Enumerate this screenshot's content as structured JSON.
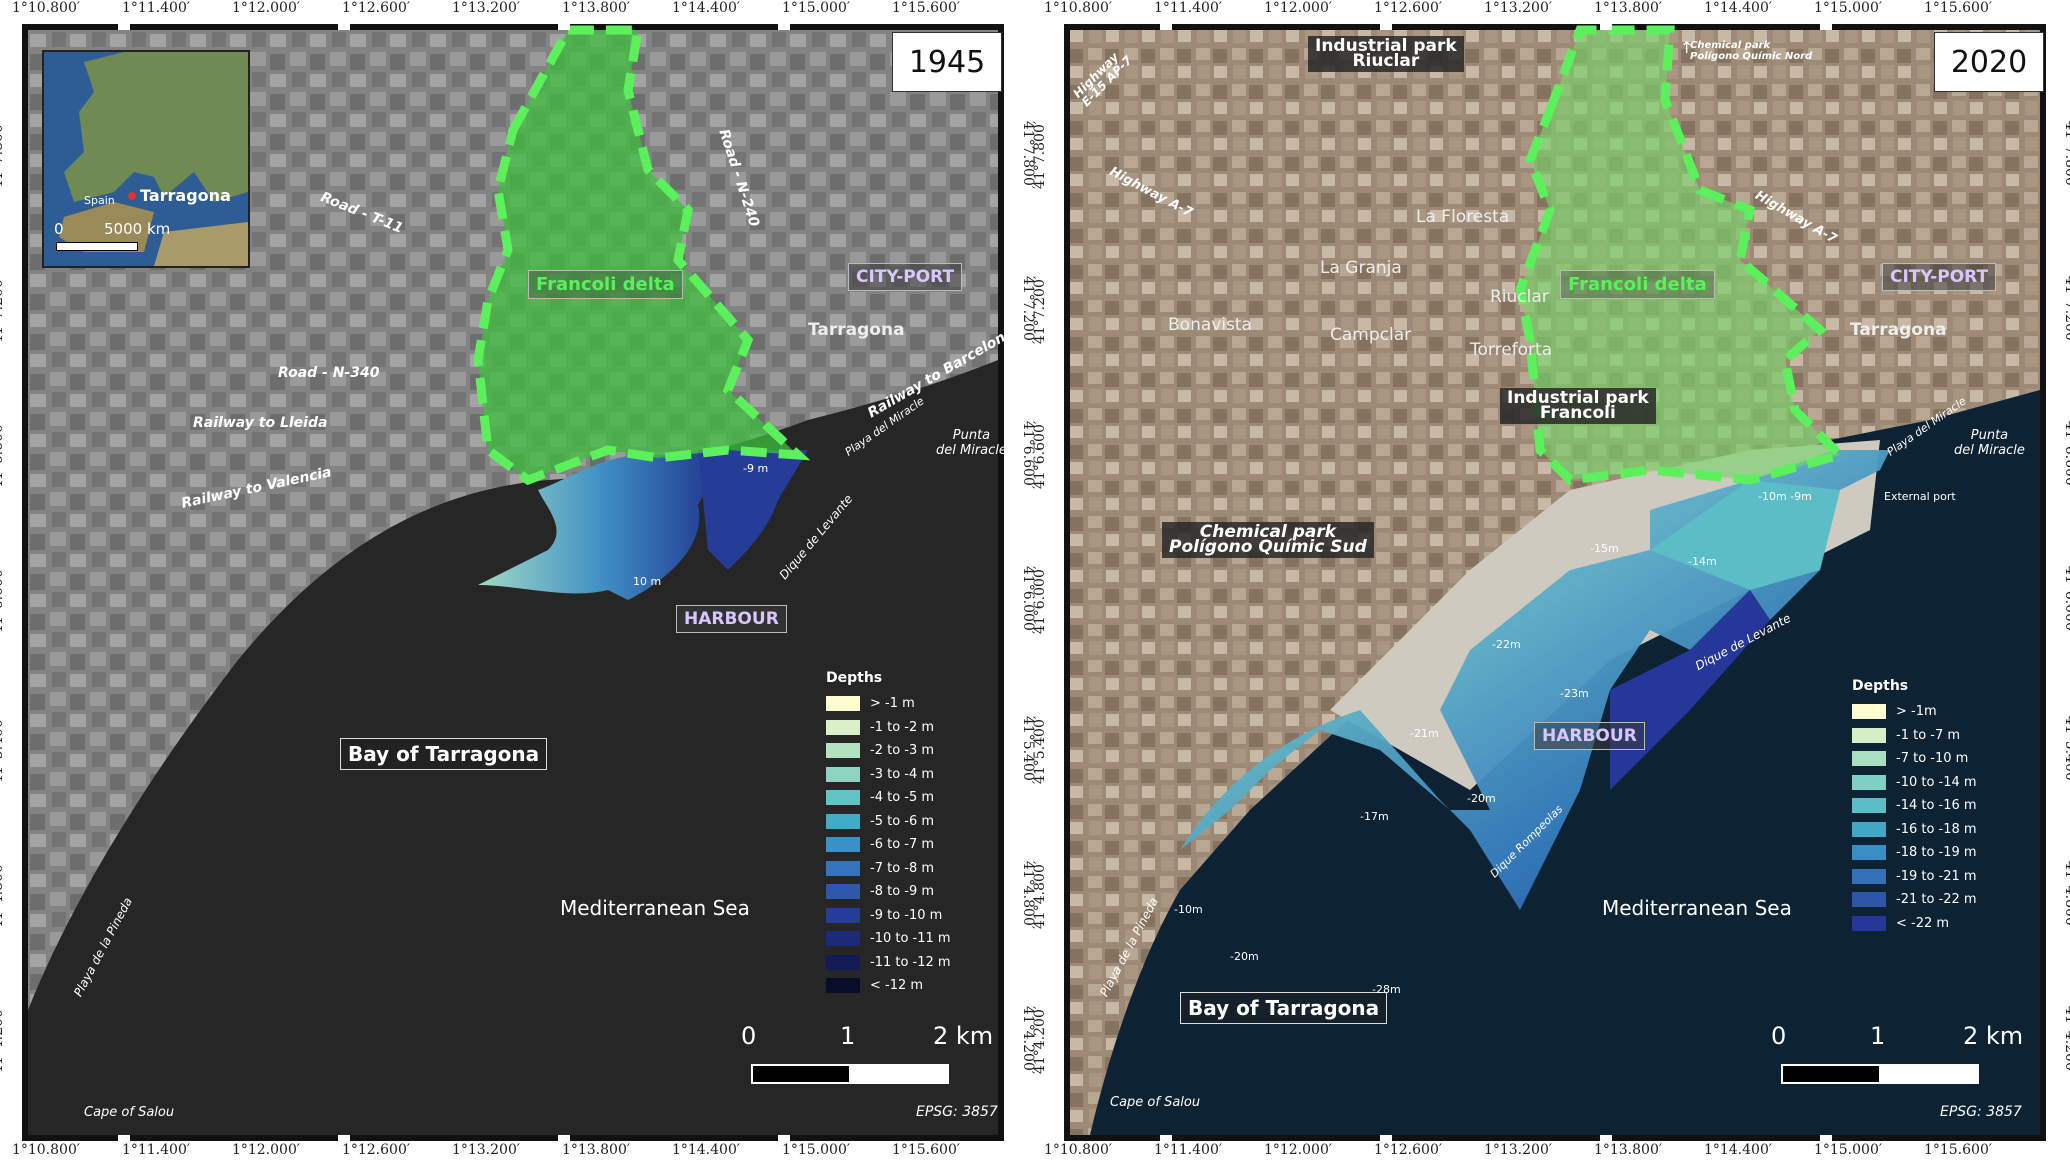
{
  "coords": {
    "lon_ticks": [
      "1°10.800′",
      "1°11.400′",
      "1°12.000′",
      "1°12.600′",
      "1°13.200′",
      "1°13.800′",
      "1°14.400′",
      "1°15.000′",
      "1°15.600′"
    ],
    "lat_ticks": [
      "41°7.800′",
      "41°7.200′",
      "41°6.600′",
      "41°6.000′",
      "41°5.400′",
      "41°4.800′",
      "41°4.200′"
    ]
  },
  "left": {
    "year": "1945",
    "inset": {
      "country": "Spain",
      "city": "Tarragona",
      "scale_zero": "0",
      "scale_km": "5000 km"
    },
    "labels": {
      "francoli": "Francoli delta",
      "cityport": "CITY-PORT",
      "tarragona": "Tarragona",
      "harbour": "HARBOUR",
      "bay": "Bay of Tarragona",
      "sea": "Mediterranean Sea",
      "road_t11": "Road - T-11",
      "road_n240": "Road - N-240",
      "road_n340": "Road - N-340",
      "rail_lleida": "Railway to Lleida",
      "rail_valencia": "Railway to Valencia",
      "rail_barcelona": "Railway to Barcelona",
      "playa_miracle": "Playa del Miracle",
      "punta_miracle": "Punta\ndel Miracle",
      "dique_levante": "Dique de Levante",
      "playa_pineda": "Playa de la Pineda",
      "cape_salou": "Cape of Salou",
      "depth_9": "-9 m",
      "depth_10": "10 m"
    },
    "legend": {
      "title": "Depths",
      "items": [
        "> -1 m",
        "-1 to -2 m",
        "-2 to -3 m",
        "-3 to -4 m",
        "-4 to -5 m",
        "-5 to -6 m",
        "-6 to -7 m",
        "-7 to -8 m",
        "-8 to -9 m",
        "-9 to -10 m",
        "-10 to -11 m",
        "-11 to -12 m",
        "< -12 m"
      ],
      "colors": [
        "#fffdd0",
        "#d9f0c8",
        "#b4e2c0",
        "#8dd3c0",
        "#62c3c4",
        "#42acc8",
        "#3a91c6",
        "#3574bd",
        "#2f58ac",
        "#263d98",
        "#1c2a7a",
        "#131b55",
        "#0a0d2a"
      ]
    },
    "scale": {
      "zero": "0",
      "one": "1",
      "two": "2 km"
    },
    "epsg": "EPSG: 3857"
  },
  "right": {
    "year": "2020",
    "labels": {
      "ind_riuclar": "Industrial park\nRiuclar",
      "chem_nord": "Chemical park\nPolígono Químic Nord",
      "hw_e15": "Highway\nE-15 AP-7",
      "hw_a7_left": "Highway A-7",
      "hw_a7_right": "Highway A-7",
      "la_floresta": "La Floresta",
      "la_granja": "La Granja",
      "riuclar": "Riuclar",
      "bonavista": "Bonavista",
      "campclar": "Campclar",
      "torreforta": "Torreforta",
      "francoli": "Francoli delta",
      "cityport": "CITY-PORT",
      "tarragona": "Tarragona",
      "ind_francoli": "Industrial park\nFrancoli",
      "chem_sud": "Chemical park\nPolígono Químic Sud",
      "playa_miracle": "Playa del Miracle",
      "punta_miracle": "Punta\ndel Miracle",
      "external_port": "External port",
      "dique_levante": "Dique de Levante",
      "dique_rompeolas": "Dique Rompeolas",
      "harbour": "HARBOUR",
      "bay": "Bay of Tarragona",
      "sea": "Mediterranean Sea",
      "playa_pineda": "Playa de la Pineda",
      "cape_salou": "Cape of Salou",
      "d10m9": "-10m  -9m",
      "d15": "-15m",
      "d14": "-14m",
      "d22": "-22m",
      "d23": "-23m",
      "d21": "-21m",
      "d20": "-20m",
      "d17": "-17m",
      "dm10": "-10m",
      "dm20": "-20m",
      "dm28": "-28m"
    },
    "legend": {
      "title": "Depths",
      "items": [
        "> -1m",
        "-1 to -7 m",
        "-7 to -10 m",
        "-10 to -14 m",
        "-14 to -16 m",
        "-16 to -18 m",
        "-18 to -19 m",
        "-19 to -21 m",
        "-21 to -22 m",
        "< -22 m"
      ],
      "colors": [
        "#fffdd0",
        "#d4efc6",
        "#a8dfc0",
        "#7fcfc2",
        "#5bbec6",
        "#43a8c8",
        "#3a8cc4",
        "#3470b8",
        "#2d55a8",
        "#25389a"
      ]
    },
    "scale": {
      "zero": "0",
      "one": "1",
      "two": "2 km"
    },
    "epsg": "EPSG: 3857"
  }
}
